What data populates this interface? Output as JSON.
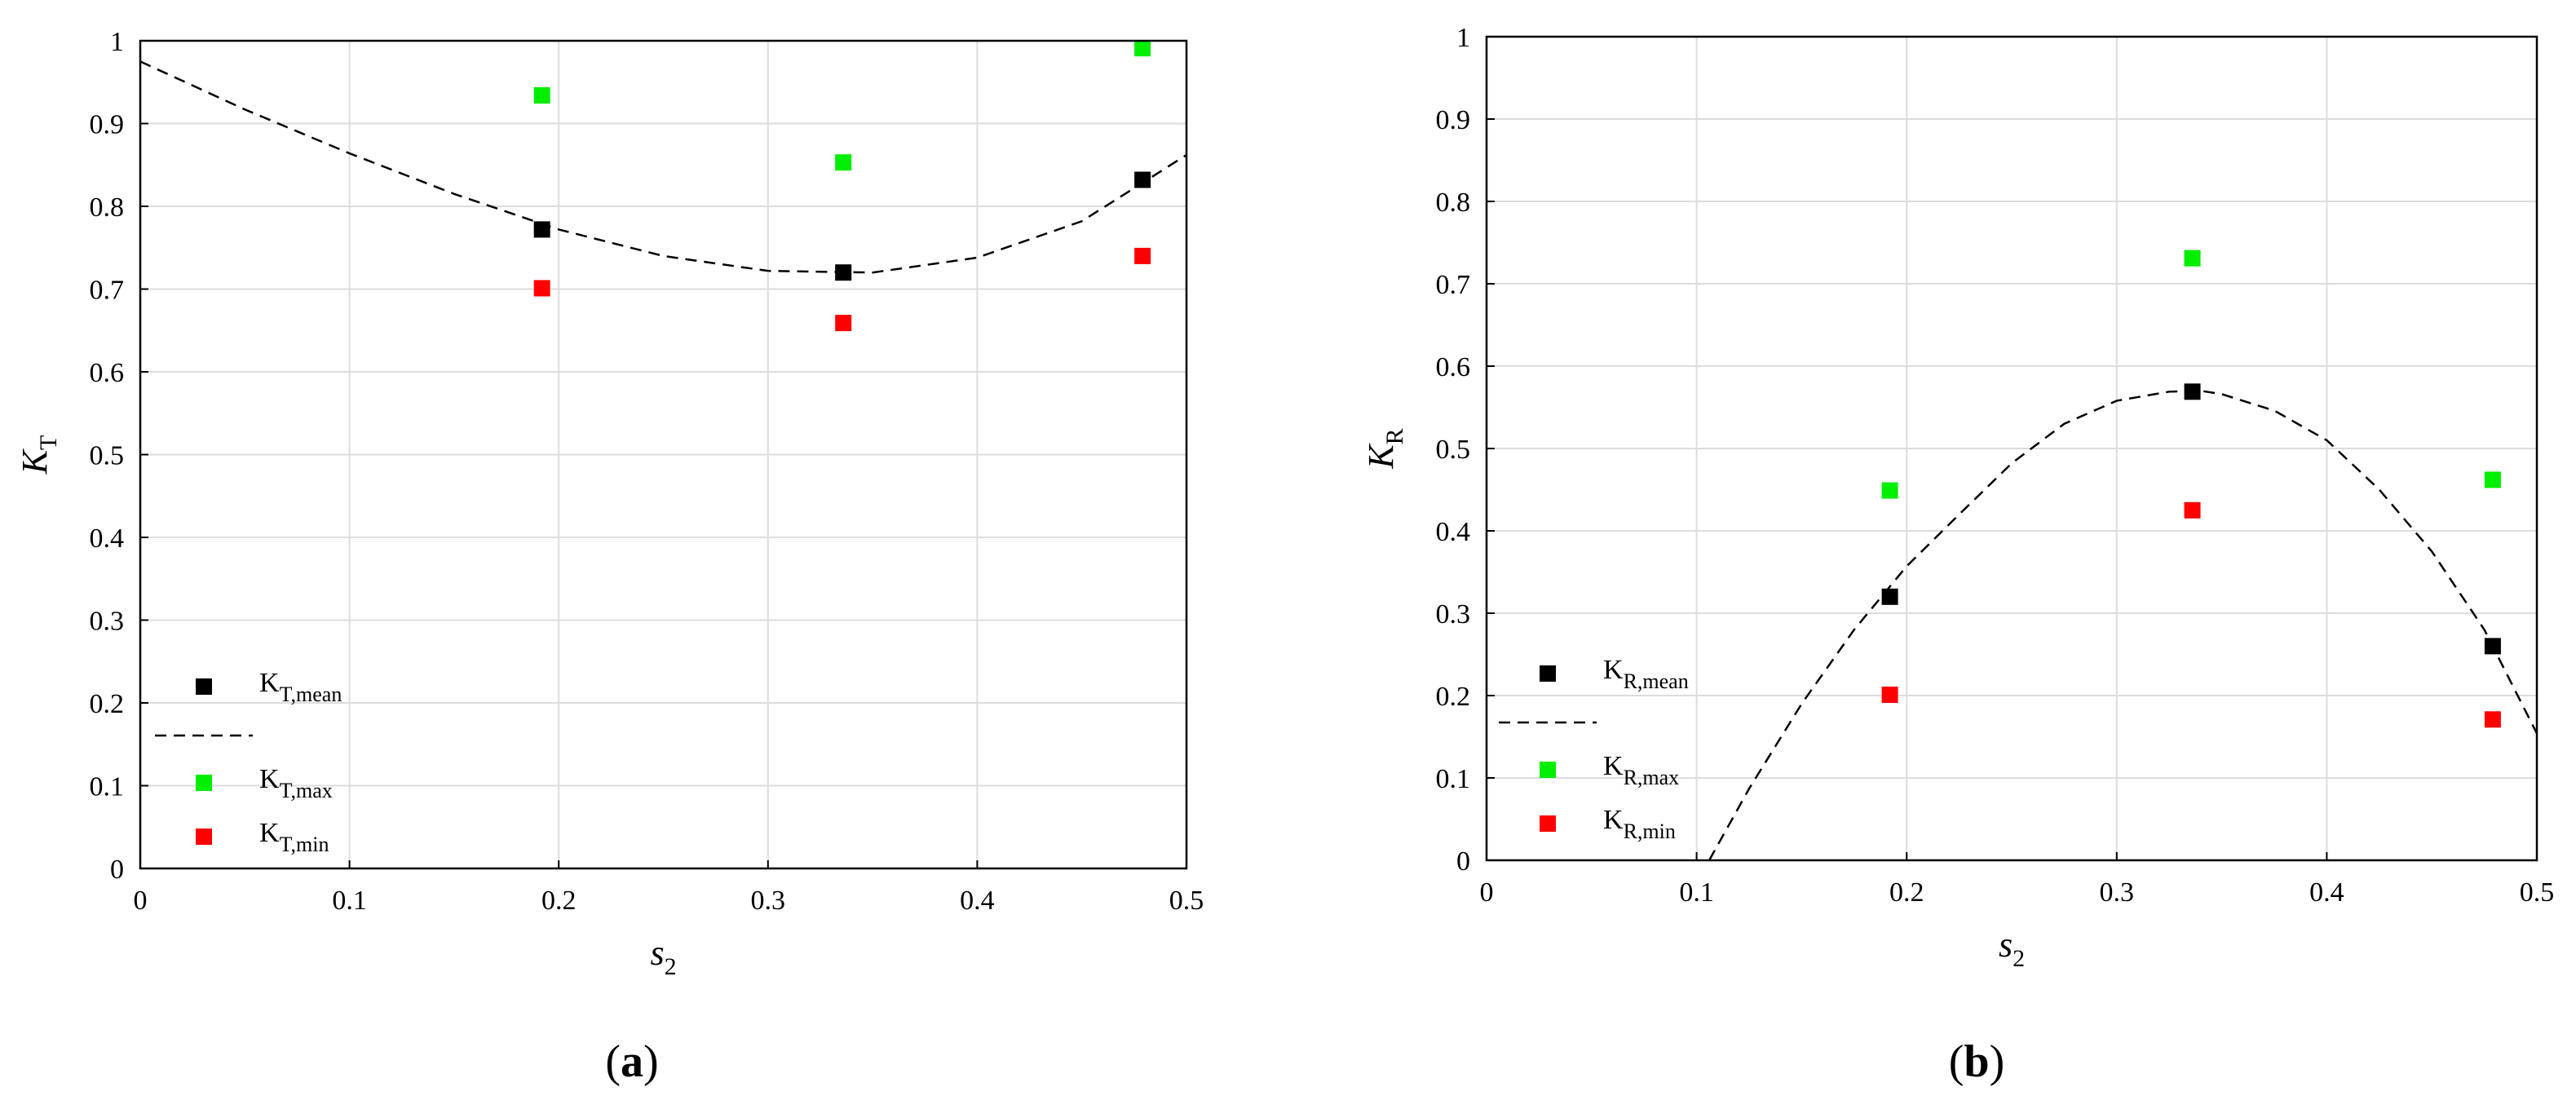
{
  "chart_data": [
    {
      "type": "scatter",
      "panel_label": "a",
      "xlabel": {
        "base": "s",
        "sub": "2"
      },
      "ylabel": {
        "base": "K",
        "sub": "T"
      },
      "xlim": [
        0,
        0.5
      ],
      "ylim": [
        0,
        1
      ],
      "xticks": [
        0,
        0.1,
        0.2,
        0.3,
        0.4,
        0.5
      ],
      "xtick_labels": [
        "0",
        "0.1",
        "0.2",
        "0.3",
        "0.4",
        "0.5"
      ],
      "yticks": [
        0,
        0.1,
        0.2,
        0.3,
        0.4,
        0.5,
        0.6,
        0.7,
        0.8,
        0.9,
        1
      ],
      "ytick_labels": [
        "0",
        "0.1",
        "0.2",
        "0.3",
        "0.4",
        "0.5",
        "0.6",
        "0.7",
        "0.8",
        "0.9",
        "1"
      ],
      "grid": true,
      "legend_position": "bottom-left",
      "series": [
        {
          "name": "K_T,mean",
          "label_base": "K",
          "label_sub": "T,mean",
          "color": "#000000",
          "marker": "square",
          "x": [
            0.192,
            0.336,
            0.479
          ],
          "y": [
            0.772,
            0.72,
            0.832
          ]
        },
        {
          "name": "",
          "line": "dashed",
          "color": "#000000",
          "x": [
            0,
            0.05,
            0.1,
            0.15,
            0.2,
            0.25,
            0.3,
            0.35,
            0.4,
            0.45,
            0.5
          ],
          "y": [
            0.975,
            0.917,
            0.864,
            0.815,
            0.772,
            0.74,
            0.722,
            0.72,
            0.738,
            0.782,
            0.862
          ]
        },
        {
          "name": "K_T,max",
          "label_base": "K",
          "label_sub": "T,max",
          "color": "#00ee00",
          "marker": "square",
          "x": [
            0.192,
            0.336,
            0.479
          ],
          "y": [
            0.934,
            0.853,
            0.991
          ]
        },
        {
          "name": "K_T,min",
          "label_base": "K",
          "label_sub": "T,min",
          "color": "#ff0000",
          "marker": "square",
          "x": [
            0.192,
            0.336,
            0.479
          ],
          "y": [
            0.701,
            0.659,
            0.74
          ]
        }
      ]
    },
    {
      "type": "scatter",
      "panel_label": "b",
      "xlabel": {
        "base": "s",
        "sub": "2"
      },
      "ylabel": {
        "base": "K",
        "sub": "R"
      },
      "xlim": [
        0,
        0.5
      ],
      "ylim": [
        0,
        1
      ],
      "xticks": [
        0,
        0.1,
        0.2,
        0.3,
        0.4,
        0.5
      ],
      "xtick_labels": [
        "0",
        "0.1",
        "0.2",
        "0.3",
        "0.4",
        "0.5"
      ],
      "yticks": [
        0,
        0.1,
        0.2,
        0.3,
        0.4,
        0.5,
        0.6,
        0.7,
        0.8,
        0.9,
        1
      ],
      "ytick_labels": [
        "0",
        "0.1",
        "0.2",
        "0.3",
        "0.4",
        "0.5",
        "0.6",
        "0.7",
        "0.8",
        "0.9",
        "1"
      ],
      "grid": true,
      "legend_position": "bottom-left",
      "series": [
        {
          "name": "K_R,mean",
          "label_base": "K",
          "label_sub": "R,mean",
          "color": "#000000",
          "marker": "square",
          "x": [
            0.192,
            0.336,
            0.479
          ],
          "y": [
            0.32,
            0.569,
            0.26
          ]
        },
        {
          "name": "",
          "line": "dashed",
          "color": "#000000",
          "x": [
            0.106,
            0.125,
            0.15,
            0.175,
            0.2,
            0.225,
            0.25,
            0.275,
            0.3,
            0.325,
            0.34,
            0.35,
            0.375,
            0.4,
            0.425,
            0.45,
            0.475,
            0.5
          ],
          "y": [
            0,
            0.087,
            0.19,
            0.28,
            0.357,
            0.42,
            0.482,
            0.53,
            0.558,
            0.569,
            0.57,
            0.566,
            0.546,
            0.51,
            0.45,
            0.375,
            0.28,
            0.154
          ]
        },
        {
          "name": "K_R,max",
          "label_base": "K",
          "label_sub": "R,max",
          "color": "#00ee00",
          "marker": "square",
          "x": [
            0.192,
            0.336,
            0.479
          ],
          "y": [
            0.449,
            0.731,
            0.462
          ]
        },
        {
          "name": "K_R,min",
          "label_base": "K",
          "label_sub": "R,min",
          "color": "#ff0000",
          "marker": "square",
          "x": [
            0.192,
            0.336,
            0.479
          ],
          "y": [
            0.201,
            0.425,
            0.171
          ]
        }
      ]
    }
  ]
}
